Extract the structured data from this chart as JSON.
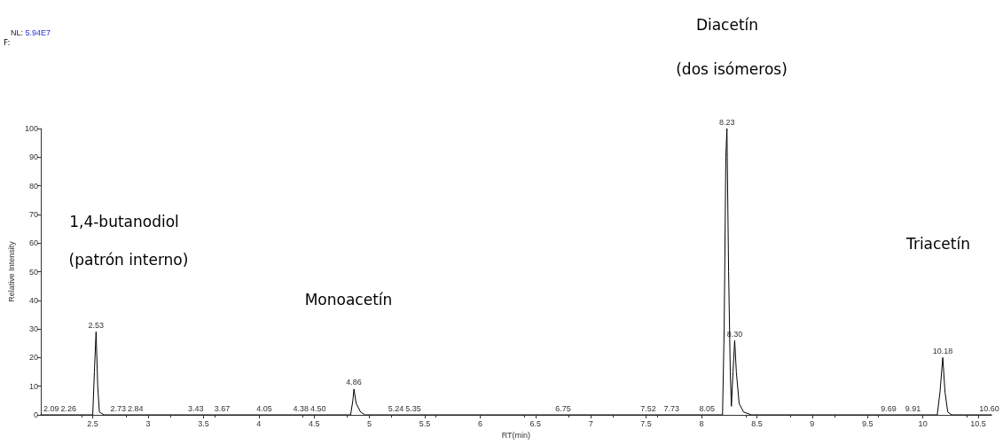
{
  "chart_data": {
    "type": "line",
    "xlabel": "RT(min)",
    "ylabel": "Relative Intensity",
    "xlim": [
      2.03,
      10.62
    ],
    "ylim": [
      0,
      100
    ],
    "xticks": [
      2.5,
      3.0,
      3.5,
      4.0,
      4.5,
      5.0,
      5.5,
      6.0,
      6.5,
      7.0,
      7.5,
      8.0,
      8.5,
      9.0,
      9.5,
      10.0,
      10.5
    ],
    "yticks": [
      0,
      10,
      20,
      30,
      40,
      50,
      60,
      70,
      80,
      90,
      100
    ],
    "grid": false,
    "marker": "none",
    "line_style": "solid",
    "series": [
      {
        "color": "#000000",
        "x": [
          2.03,
          2.5,
          2.515,
          2.53,
          2.545,
          2.56,
          2.6,
          4.83,
          4.85,
          4.86,
          4.88,
          4.92,
          4.96,
          8.19,
          8.205,
          8.22,
          8.23,
          8.245,
          8.26,
          8.27,
          8.285,
          8.3,
          8.315,
          8.34,
          8.38,
          8.45,
          10.13,
          10.155,
          10.18,
          10.2,
          10.225,
          10.26,
          10.62
        ],
        "values": [
          0,
          0,
          15,
          29,
          10,
          1,
          0,
          0,
          5,
          9,
          4,
          1,
          0,
          0,
          30,
          90,
          100,
          50,
          15,
          3,
          15,
          26,
          15,
          4,
          1,
          0,
          0,
          8,
          20,
          8,
          1,
          0,
          0
        ]
      }
    ],
    "annotations": [
      "NL: 5.94E7",
      "F:",
      "1,4-butanodiol",
      "(patrón interno)",
      "Monoacetín",
      "Diacetín",
      "(dos isómeros)",
      "Triacetín",
      {
        "text": "2.09",
        "x": 2.09,
        "y": 0
      },
      {
        "text": "2.26",
        "x": 2.26,
        "y": 0
      },
      {
        "text": "2.53",
        "x": 2.53,
        "y": 29
      },
      {
        "text": "2.73",
        "x": 2.73,
        "y": 0
      },
      {
        "text": "2.84",
        "x": 2.84,
        "y": 0
      },
      {
        "text": "3.43",
        "x": 3.43,
        "y": 0
      },
      {
        "text": "3.67",
        "x": 3.67,
        "y": 0
      },
      {
        "text": "4.05",
        "x": 4.05,
        "y": 0
      },
      {
        "text": "4.38",
        "x": 4.38,
        "y": 0
      },
      {
        "text": "4.50",
        "x": 4.5,
        "y": 0
      },
      {
        "text": "4.86",
        "x": 4.86,
        "y": 9
      },
      {
        "text": "5.24",
        "x": 5.24,
        "y": 0
      },
      {
        "text": "5.35",
        "x": 5.35,
        "y": 0
      },
      {
        "text": "6.75",
        "x": 6.75,
        "y": 0
      },
      {
        "text": "7.52",
        "x": 7.52,
        "y": 0
      },
      {
        "text": "7.73",
        "x": 7.73,
        "y": 0
      },
      {
        "text": "8.05",
        "x": 8.05,
        "y": 0
      },
      {
        "text": "8.23",
        "x": 8.23,
        "y": 100
      },
      {
        "text": "8.30",
        "x": 8.3,
        "y": 26
      },
      {
        "text": "9.69",
        "x": 9.69,
        "y": 0
      },
      {
        "text": "9.91",
        "x": 9.91,
        "y": 0
      },
      {
        "text": "10.18",
        "x": 10.18,
        "y": 20
      },
      {
        "text": "10.60",
        "x": 10.6,
        "y": 0
      }
    ]
  }
}
